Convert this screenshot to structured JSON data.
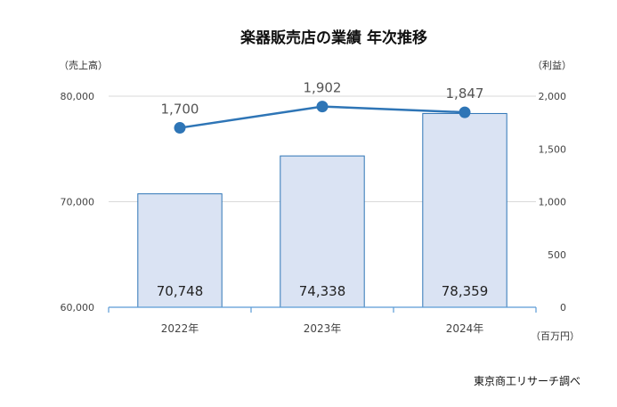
{
  "chart_data": {
    "type": "bar+line",
    "title": "楽器販売店の業績 年次推移",
    "categories": [
      "2022年",
      "2023年",
      "2024年"
    ],
    "y_left": {
      "label": "（売上高）",
      "ylim": [
        60000,
        80000
      ],
      "ticks": [
        "60,000",
        "70,000",
        "80,000"
      ]
    },
    "y_right": {
      "label": "（利益）",
      "ylim": [
        0,
        2000
      ],
      "ticks": [
        "0",
        "500",
        "1,000",
        "1,500",
        "2,000"
      ]
    },
    "unit": "（百万円）",
    "series": [
      {
        "type": "bar",
        "axis": "left",
        "values": [
          70748,
          74338,
          78359
        ],
        "labels": [
          "70,748",
          "74,338",
          "78,359"
        ]
      },
      {
        "type": "line",
        "axis": "right",
        "values": [
          1700,
          1902,
          1847
        ],
        "labels": [
          "1,700",
          "1,902",
          "1,847"
        ]
      }
    ],
    "grid": true,
    "colors": {
      "bar_fill": "#dae3f3",
      "bar_stroke": "#2e75b6",
      "line": "#2e75b6",
      "grid": "#d9d9d9",
      "axis": "#5b9bd5"
    }
  },
  "source": "東京商工リサーチ調べ"
}
